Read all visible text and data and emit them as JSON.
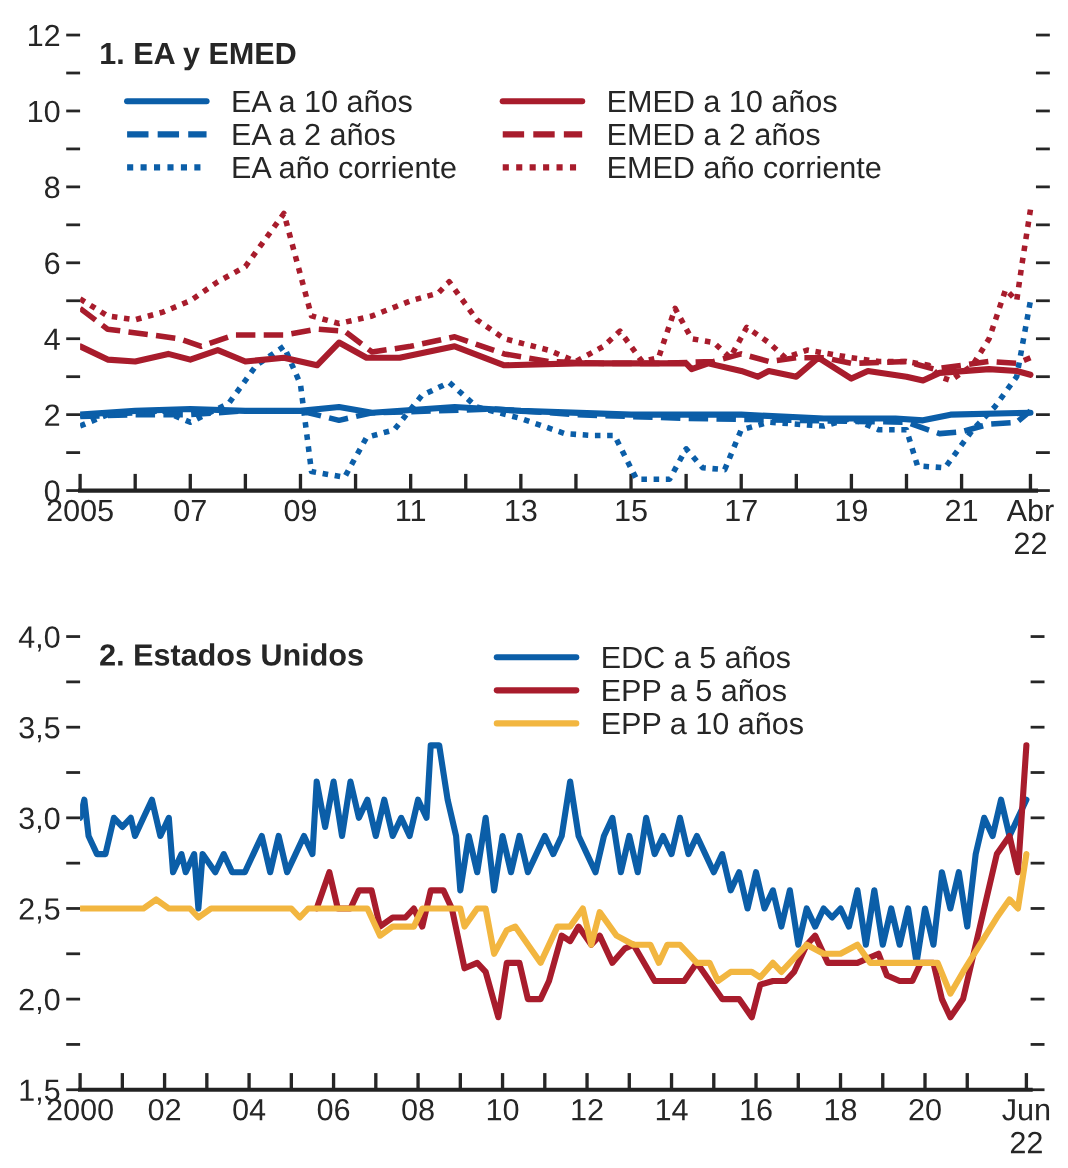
{
  "chart_data": [
    {
      "type": "line",
      "title": "1. EA y EMED",
      "legend": "top left",
      "grid": false,
      "xlim": [
        2005,
        2022.35
      ],
      "ylim": [
        0,
        12
      ],
      "xticks": [
        2005,
        {
          "value": 2006,
          "label": null
        },
        {
          "value": 2007,
          "label": "07"
        },
        {
          "value": 2008,
          "label": null
        },
        {
          "value": 2009,
          "label": "09"
        },
        {
          "value": 2010,
          "label": null
        },
        {
          "value": 2011,
          "label": "11"
        },
        {
          "value": 2012,
          "label": null
        },
        {
          "value": 2013,
          "label": "13"
        },
        {
          "value": 2014,
          "label": null
        },
        {
          "value": 2015,
          "label": "15"
        },
        {
          "value": 2016,
          "label": null
        },
        {
          "value": 2017,
          "label": "17"
        },
        {
          "value": 2018,
          "label": null
        },
        {
          "value": 2019,
          "label": "19"
        },
        {
          "value": 2020,
          "label": null
        },
        {
          "value": 2021,
          "label": "21"
        },
        {
          "value": 2022.25,
          "label": "Abr\n22"
        }
      ],
      "yticks": [
        0,
        {
          "value": 1,
          "label": null
        },
        2,
        {
          "value": 3,
          "label": null
        },
        4,
        {
          "value": 5,
          "label": null
        },
        6,
        {
          "value": 7,
          "label": null
        },
        8,
        {
          "value": 9,
          "label": null
        },
        10,
        {
          "value": 11,
          "label": null
        },
        12
      ],
      "series": [
        {
          "name": "EA a 10 años",
          "color": "#0b5ea8",
          "line_style": "solid",
          "x": [
            2005,
            2006,
            2007,
            2008,
            2009,
            2009.7,
            2010.3,
            2011.8,
            2013,
            2015,
            2017,
            2018.5,
            2019.8,
            2020.3,
            2020.8,
            2022.25
          ],
          "values": [
            2.0,
            2.1,
            2.15,
            2.1,
            2.1,
            2.2,
            2.05,
            2.2,
            2.1,
            2.0,
            2.0,
            1.9,
            1.9,
            1.85,
            2.0,
            2.05
          ]
        },
        {
          "name": "EA a 2 años",
          "color": "#0b5ea8",
          "line_style": "dashed",
          "x": [
            2005,
            2006,
            2007,
            2008,
            2009,
            2009.7,
            2010.3,
            2011.5,
            2012.5,
            2014,
            2016,
            2018,
            2020,
            2020.6,
            2021,
            2021.5,
            2022,
            2022.25
          ],
          "values": [
            1.95,
            2.0,
            2.0,
            2.1,
            2.1,
            1.85,
            2.05,
            2.1,
            2.15,
            2.0,
            1.9,
            1.85,
            1.8,
            1.5,
            1.55,
            1.75,
            1.8,
            2.1
          ]
        },
        {
          "name": "EA año corriente",
          "color": "#0b5ea8",
          "line_style": "dotted",
          "x": [
            2005,
            2005.5,
            2006.5,
            2007,
            2007.7,
            2008.2,
            2008.7,
            2009,
            2009.2,
            2009.8,
            2010.2,
            2010.7,
            2011.2,
            2011.7,
            2012.2,
            2013,
            2013.8,
            2014.3,
            2014.7,
            2015.1,
            2015.7,
            2016,
            2016.3,
            2016.7,
            2017,
            2017.5,
            2018.5,
            2019,
            2019.5,
            2020,
            2020.2,
            2020.7,
            2021.2,
            2021.6,
            2022,
            2022.25
          ],
          "values": [
            1.7,
            2.0,
            2.1,
            1.8,
            2.3,
            3.3,
            3.8,
            2.8,
            0.5,
            0.35,
            1.4,
            1.6,
            2.5,
            2.85,
            2.2,
            1.9,
            1.5,
            1.45,
            1.45,
            0.3,
            0.3,
            1.1,
            0.6,
            0.55,
            1.6,
            1.8,
            1.7,
            1.9,
            1.6,
            1.6,
            0.65,
            0.6,
            1.6,
            2.2,
            3.0,
            5.0
          ]
        },
        {
          "name": "EMED a 10 años",
          "color": "#a81c2c",
          "line_style": "solid",
          "x": [
            2005,
            2005.5,
            2006,
            2006.6,
            2007,
            2007.5,
            2008,
            2008.7,
            2009.3,
            2009.7,
            2010.2,
            2010.8,
            2011.8,
            2012.7,
            2014,
            2015,
            2016,
            2016.1,
            2016.4,
            2017,
            2017.3,
            2017.5,
            2018,
            2018.4,
            2019,
            2019.3,
            2020,
            2020.3,
            2020.6,
            2021.5,
            2022,
            2022.25
          ],
          "values": [
            3.8,
            3.45,
            3.4,
            3.6,
            3.45,
            3.7,
            3.4,
            3.5,
            3.3,
            3.9,
            3.5,
            3.5,
            3.8,
            3.3,
            3.35,
            3.35,
            3.35,
            3.2,
            3.35,
            3.15,
            3.0,
            3.15,
            3.0,
            3.5,
            2.95,
            3.15,
            3.0,
            2.9,
            3.1,
            3.2,
            3.15,
            3.05
          ]
        },
        {
          "name": "EMED a 2 años",
          "color": "#a81c2c",
          "line_style": "dashed",
          "x": [
            2005,
            2005.5,
            2006.3,
            2006.8,
            2007.2,
            2007.8,
            2008.7,
            2009.3,
            2009.8,
            2010.3,
            2011,
            2011.8,
            2012.7,
            2013.5,
            2014.5,
            2015.5,
            2016.5,
            2017,
            2017.5,
            2018,
            2018.5,
            2019,
            2020,
            2020.5,
            2021,
            2021.5,
            2022,
            2022.25
          ],
          "values": [
            4.8,
            4.25,
            4.1,
            4.0,
            3.8,
            4.1,
            4.1,
            4.25,
            4.2,
            3.65,
            3.8,
            4.05,
            3.6,
            3.4,
            3.35,
            3.35,
            3.4,
            3.6,
            3.4,
            3.5,
            3.5,
            3.35,
            3.4,
            3.2,
            3.3,
            3.4,
            3.35,
            3.5
          ]
        },
        {
          "name": "EMED año corriente",
          "color": "#a81c2c",
          "line_style": "dotted",
          "x": [
            2005,
            2005.5,
            2006,
            2006.5,
            2007,
            2007.5,
            2008,
            2008.3,
            2008.7,
            2009.2,
            2009.7,
            2010.3,
            2011,
            2011.5,
            2011.7,
            2012.2,
            2012.7,
            2013.5,
            2014,
            2014.5,
            2014.8,
            2015.2,
            2015.5,
            2015.8,
            2016.1,
            2016.5,
            2016.8,
            2017.1,
            2017.5,
            2017.8,
            2018.2,
            2019,
            2019.5,
            2020,
            2020.4,
            2020.6,
            2020.8,
            2021.2,
            2021.5,
            2021.8,
            2022,
            2022.1,
            2022.25
          ],
          "values": [
            5.05,
            4.6,
            4.5,
            4.7,
            5.0,
            5.5,
            5.9,
            6.5,
            7.3,
            4.6,
            4.4,
            4.6,
            5.0,
            5.2,
            5.5,
            4.5,
            4.0,
            3.7,
            3.4,
            3.8,
            4.2,
            3.4,
            3.5,
            4.8,
            4.0,
            3.9,
            3.5,
            4.3,
            3.9,
            3.5,
            3.7,
            3.5,
            3.4,
            3.4,
            3.3,
            3.0,
            2.9,
            3.3,
            4.0,
            5.3,
            5.0,
            6.0,
            7.4
          ]
        }
      ]
    },
    {
      "type": "line",
      "title": "2. Estados Unidos",
      "legend": "top",
      "grid": false,
      "xlim": [
        2000,
        2022.5
      ],
      "ylim": [
        1.5,
        4.0
      ],
      "xticks": [
        2000,
        {
          "value": 2001,
          "label": null
        },
        {
          "value": 2002,
          "label": "02"
        },
        {
          "value": 2003,
          "label": null
        },
        {
          "value": 2004,
          "label": "04"
        },
        {
          "value": 2005,
          "label": null
        },
        {
          "value": 2006,
          "label": "06"
        },
        {
          "value": 2007,
          "label": null
        },
        {
          "value": 2008,
          "label": "08"
        },
        {
          "value": 2009,
          "label": null
        },
        {
          "value": 2010,
          "label": "10"
        },
        {
          "value": 2011,
          "label": null
        },
        {
          "value": 2012,
          "label": "12"
        },
        {
          "value": 2013,
          "label": null
        },
        {
          "value": 2014,
          "label": "14"
        },
        {
          "value": 2015,
          "label": null
        },
        {
          "value": 2016,
          "label": "16"
        },
        {
          "value": 2017,
          "label": null
        },
        {
          "value": 2018,
          "label": "18"
        },
        {
          "value": 2019,
          "label": null
        },
        {
          "value": 2020,
          "label": "20"
        },
        {
          "value": 2021,
          "label": null
        },
        {
          "value": 2022.4,
          "label": "Jun\n22"
        }
      ],
      "yticks": [
        {
          "value": 1.5,
          "label": "1,5"
        },
        {
          "value": 1.75,
          "label": null
        },
        {
          "value": 2.0,
          "label": "2,0"
        },
        {
          "value": 2.25,
          "label": null
        },
        {
          "value": 2.5,
          "label": "2,5"
        },
        {
          "value": 2.75,
          "label": null
        },
        {
          "value": 3.0,
          "label": "3,0"
        },
        {
          "value": 3.25,
          "label": null
        },
        {
          "value": 3.5,
          "label": "3,5"
        },
        {
          "value": 3.75,
          "label": null
        },
        {
          "value": 4.0,
          "label": "4,0"
        }
      ],
      "series": [
        {
          "name": "EDC a 5 años",
          "color": "#0b5ea8",
          "line_style": "solid",
          "x": [
            2000.0,
            2000.1,
            2000.2,
            2000.4,
            2000.6,
            2000.8,
            2001.0,
            2001.2,
            2001.3,
            2001.5,
            2001.7,
            2001.9,
            2002.1,
            2002.2,
            2002.4,
            2002.5,
            2002.7,
            2002.8,
            2002.9,
            2003.2,
            2003.4,
            2003.6,
            2003.9,
            2004.1,
            2004.3,
            2004.5,
            2004.7,
            2004.9,
            2005.1,
            2005.3,
            2005.5,
            2005.6,
            2005.8,
            2006.0,
            2006.2,
            2006.4,
            2006.6,
            2006.8,
            2007.0,
            2007.2,
            2007.4,
            2007.6,
            2007.8,
            2008.0,
            2008.2,
            2008.3,
            2008.5,
            2008.7,
            2008.9,
            2009.0,
            2009.2,
            2009.4,
            2009.6,
            2009.8,
            2010.0,
            2010.2,
            2010.4,
            2010.6,
            2010.8,
            2011.0,
            2011.2,
            2011.4,
            2011.6,
            2011.8,
            2012.0,
            2012.2,
            2012.4,
            2012.6,
            2012.8,
            2013.0,
            2013.2,
            2013.4,
            2013.6,
            2013.8,
            2014.0,
            2014.2,
            2014.4,
            2014.6,
            2014.8,
            2015.0,
            2015.2,
            2015.4,
            2015.6,
            2015.8,
            2016.0,
            2016.2,
            2016.4,
            2016.6,
            2016.8,
            2017.0,
            2017.2,
            2017.4,
            2017.6,
            2017.8,
            2018.0,
            2018.2,
            2018.4,
            2018.6,
            2018.8,
            2019.0,
            2019.2,
            2019.4,
            2019.6,
            2019.8,
            2020.0,
            2020.2,
            2020.4,
            2020.6,
            2020.8,
            2021.0,
            2021.2,
            2021.4,
            2021.6,
            2021.8,
            2022.0,
            2022.2,
            2022.4
          ],
          "values": [
            3.0,
            3.1,
            2.9,
            2.8,
            2.8,
            3.0,
            2.95,
            3.0,
            2.9,
            3.0,
            3.1,
            2.9,
            3.0,
            2.7,
            2.8,
            2.7,
            2.8,
            2.5,
            2.8,
            2.7,
            2.8,
            2.7,
            2.7,
            2.8,
            2.9,
            2.7,
            2.9,
            2.7,
            2.8,
            2.9,
            2.8,
            3.2,
            2.95,
            3.2,
            2.9,
            3.2,
            3.0,
            3.1,
            2.9,
            3.1,
            2.9,
            3.0,
            2.9,
            3.1,
            3.0,
            3.4,
            3.4,
            3.1,
            2.9,
            2.6,
            2.9,
            2.7,
            3.0,
            2.6,
            2.9,
            2.7,
            2.9,
            2.7,
            2.8,
            2.9,
            2.8,
            2.9,
            3.2,
            2.9,
            2.8,
            2.7,
            2.9,
            3.0,
            2.7,
            2.9,
            2.7,
            3.0,
            2.8,
            2.9,
            2.8,
            3.0,
            2.8,
            2.9,
            2.8,
            2.7,
            2.8,
            2.6,
            2.7,
            2.5,
            2.7,
            2.5,
            2.6,
            2.4,
            2.6,
            2.3,
            2.5,
            2.4,
            2.5,
            2.45,
            2.5,
            2.4,
            2.6,
            2.3,
            2.6,
            2.3,
            2.5,
            2.3,
            2.5,
            2.2,
            2.5,
            2.3,
            2.7,
            2.5,
            2.7,
            2.4,
            2.8,
            3.0,
            2.9,
            3.1,
            2.9,
            3.0,
            3.1
          ]
        },
        {
          "name": "EPP a 5 años",
          "color": "#a81c2c",
          "line_style": "solid",
          "x": [
            2005.6,
            2005.9,
            2006.1,
            2006.4,
            2006.6,
            2006.9,
            2007.1,
            2007.4,
            2007.7,
            2007.9,
            2008.1,
            2008.3,
            2008.6,
            2008.8,
            2009.1,
            2009.4,
            2009.6,
            2009.9,
            2010.1,
            2010.4,
            2010.6,
            2010.9,
            2011.1,
            2011.4,
            2011.6,
            2011.8,
            2012.1,
            2012.3,
            2012.6,
            2012.9,
            2013.1,
            2013.6,
            2014.3,
            2014.6,
            2015.2,
            2015.6,
            2015.9,
            2016.1,
            2016.4,
            2016.7,
            2016.9,
            2017.2,
            2017.4,
            2017.7,
            2018.4,
            2018.9,
            2019.1,
            2019.4,
            2019.7,
            2019.9,
            2020.2,
            2020.4,
            2020.6,
            2020.9,
            2021.3,
            2021.7,
            2022.0,
            2022.2,
            2022.4
          ],
          "values": [
            2.5,
            2.7,
            2.5,
            2.5,
            2.6,
            2.6,
            2.4,
            2.45,
            2.45,
            2.5,
            2.4,
            2.6,
            2.6,
            2.5,
            2.17,
            2.2,
            2.15,
            1.9,
            2.2,
            2.2,
            2.0,
            2.0,
            2.1,
            2.35,
            2.32,
            2.4,
            2.3,
            2.35,
            2.2,
            2.28,
            2.3,
            2.1,
            2.1,
            2.2,
            2.0,
            2.0,
            1.9,
            2.08,
            2.1,
            2.1,
            2.15,
            2.3,
            2.35,
            2.2,
            2.2,
            2.25,
            2.13,
            2.1,
            2.1,
            2.2,
            2.2,
            2.0,
            1.9,
            2.0,
            2.4,
            2.8,
            2.9,
            2.7,
            3.4
          ]
        },
        {
          "name": "EPP a 10 años",
          "color": "#f2b640",
          "line_style": "solid",
          "x": [
            2000.0,
            2001.5,
            2001.8,
            2002.1,
            2002.6,
            2002.8,
            2003.1,
            2005.0,
            2005.2,
            2005.4,
            2006.8,
            2007.1,
            2007.4,
            2007.9,
            2008.1,
            2009.0,
            2009.1,
            2009.4,
            2009.6,
            2009.8,
            2010.1,
            2010.3,
            2010.9,
            2011.3,
            2011.6,
            2011.9,
            2012.1,
            2012.3,
            2012.7,
            2013.1,
            2013.5,
            2013.7,
            2013.9,
            2014.2,
            2014.6,
            2014.9,
            2015.1,
            2015.4,
            2015.9,
            2016.1,
            2016.4,
            2016.6,
            2017.2,
            2017.6,
            2018.0,
            2018.4,
            2018.7,
            2020.3,
            2020.6,
            2020.9,
            2021.3,
            2021.7,
            2022.0,
            2022.2,
            2022.4
          ],
          "values": [
            2.5,
            2.5,
            2.55,
            2.5,
            2.5,
            2.45,
            2.5,
            2.5,
            2.45,
            2.5,
            2.5,
            2.35,
            2.4,
            2.4,
            2.5,
            2.5,
            2.4,
            2.5,
            2.5,
            2.25,
            2.38,
            2.4,
            2.2,
            2.4,
            2.4,
            2.5,
            2.3,
            2.48,
            2.35,
            2.3,
            2.3,
            2.2,
            2.3,
            2.3,
            2.2,
            2.2,
            2.1,
            2.15,
            2.15,
            2.12,
            2.2,
            2.15,
            2.3,
            2.25,
            2.25,
            2.3,
            2.2,
            2.2,
            2.03,
            2.15,
            2.3,
            2.45,
            2.55,
            2.5,
            2.8
          ]
        }
      ]
    }
  ]
}
